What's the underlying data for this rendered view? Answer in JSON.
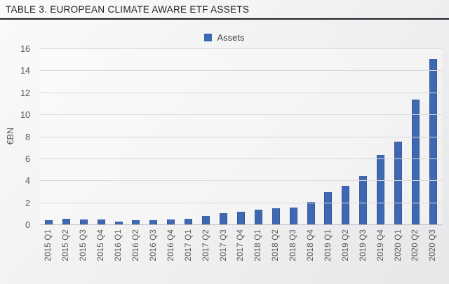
{
  "header": {
    "title": "TABLE 3. EUROPEAN CLIMATE AWARE ETF ASSETS"
  },
  "chart_data": {
    "type": "bar",
    "title": "TABLE 3. EUROPEAN CLIMATE AWARE ETF ASSETS",
    "legend": {
      "label": "Assets",
      "position": "top-center",
      "swatch_color": "#3e68b2"
    },
    "ylabel": "€BN",
    "ylim": [
      0,
      16
    ],
    "ytick_step": 2,
    "yticks": [
      0,
      2,
      4,
      6,
      8,
      10,
      12,
      14,
      16
    ],
    "grid": true,
    "bar_color": "#3e68b2",
    "categories": [
      "2015 Q1",
      "2015 Q2",
      "2015 Q3",
      "2015 Q4",
      "2016 Q1",
      "2016 Q2",
      "2016 Q3",
      "2016 Q4",
      "2017 Q1",
      "2017 Q2",
      "2017 Q3",
      "2017 Q4",
      "2018 Q1",
      "2018 Q2",
      "2018 Q3",
      "2018 Q4",
      "2019 Q1",
      "2019 Q2",
      "2019 Q3",
      "2019 Q4",
      "2020 Q1",
      "2020 Q2",
      "2020 Q3"
    ],
    "values": [
      0.45,
      0.6,
      0.5,
      0.5,
      0.3,
      0.45,
      0.45,
      0.5,
      0.55,
      0.8,
      1.1,
      1.2,
      1.4,
      1.5,
      1.6,
      2.1,
      3.0,
      3.55,
      4.45,
      6.4,
      7.6,
      11.4,
      15.1
    ]
  },
  "colors": {
    "bar": "#3e68b2",
    "grid": "#d9d9d9",
    "axis_text": "#595959",
    "title_text": "#1d1d27",
    "rule": "#21212b"
  }
}
